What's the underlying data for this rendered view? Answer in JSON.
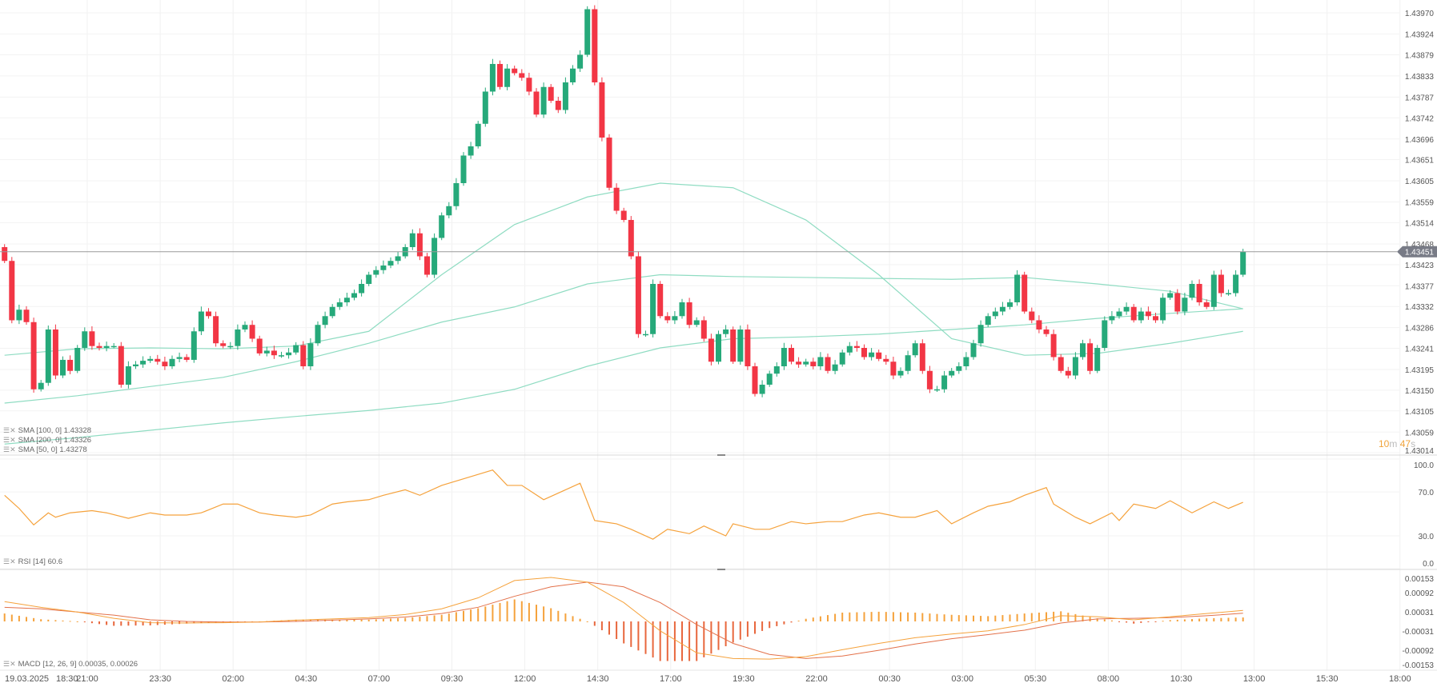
{
  "colors": {
    "up": "#26a97a",
    "down": "#f23645",
    "sma": "#8fdcc2",
    "rsi": "#f5a23c",
    "macd": "#f5a23c",
    "signal": "#e3714a",
    "hist_up": "#f5a23c",
    "hist_down": "#e8673d",
    "last_price": "#787b86"
  },
  "legend": {
    "sma100": "SMA [100, 0] 1.43328",
    "sma200": "SMA [200, 0] 1.43326",
    "sma50": "SMA [50, 0] 1.43278",
    "rsi": "RSI [14] 60.6",
    "macd": "MACD [12, 26, 9] 0.00035, 0.00026",
    "icons": [
      "settings-icon",
      "close-icon"
    ]
  },
  "timer": {
    "minutes": "10",
    "m": "m",
    "seconds": "47",
    "s": "s"
  },
  "chart_data": [
    {
      "type": "candlestick",
      "title": "",
      "first_open": 1.43461,
      "closes": [
        1.43431,
        1.43302,
        1.43325,
        1.43298,
        1.43152,
        1.43166,
        1.43282,
        1.43182,
        1.43216,
        1.43192,
        1.43242,
        1.43278,
        1.43246,
        1.43242,
        1.43246,
        1.43246,
        1.43162,
        1.43202,
        1.43206,
        1.43214,
        1.43218,
        1.43212,
        1.43202,
        1.43218,
        1.43222,
        1.43216,
        1.43278,
        1.43321,
        1.43311,
        1.43252,
        1.43246,
        1.43246,
        1.43282,
        1.43292,
        1.43262,
        1.4323,
        1.43236,
        1.43226,
        1.43226,
        1.43232,
        1.43248,
        1.43202,
        1.43252,
        1.43292,
        1.43311,
        1.43331,
        1.43341,
        1.43351,
        1.43361,
        1.43381,
        1.43401,
        1.43411,
        1.43421,
        1.43431,
        1.43441,
        1.43461,
        1.43491,
        1.43441,
        1.43401,
        1.43481,
        1.4353,
        1.4355,
        1.436,
        1.4366,
        1.4368,
        1.43729,
        1.43799,
        1.43859,
        1.43809,
        1.43849,
        1.43839,
        1.43829,
        1.43799,
        1.43749,
        1.43809,
        1.43779,
        1.43759,
        1.43819,
        1.43849,
        1.43879,
        1.43978,
        1.43819,
        1.43699,
        1.4359,
        1.4354,
        1.4352,
        1.43441,
        1.43272,
        1.43272,
        1.43381,
        1.43311,
        1.43302,
        1.43311,
        1.43341,
        1.43292,
        1.43302,
        1.43262,
        1.43212,
        1.43272,
        1.43282,
        1.43212,
        1.43282,
        1.43202,
        1.43142,
        1.43162,
        1.43186,
        1.43202,
        1.43242,
        1.43212,
        1.43206,
        1.43212,
        1.43202,
        1.43222,
        1.43192,
        1.43206,
        1.43232,
        1.43246,
        1.43242,
        1.43222,
        1.43232,
        1.43218,
        1.43212,
        1.43182,
        1.43192,
        1.43226,
        1.43252,
        1.43192,
        1.43152,
        1.43152,
        1.43182,
        1.43192,
        1.43202,
        1.43222,
        1.43252,
        1.43292,
        1.43311,
        1.43321,
        1.43331,
        1.43341,
        1.43401,
        1.43321,
        1.43302,
        1.43282,
        1.43272,
        1.43222,
        1.43192,
        1.43182,
        1.43222,
        1.43252,
        1.43192,
        1.43242,
        1.43302,
        1.43311,
        1.43321,
        1.43331,
        1.43302,
        1.43321,
        1.43311,
        1.43302,
        1.43351,
        1.43361,
        1.43321,
        1.43351,
        1.43381,
        1.43341,
        1.43331,
        1.43401,
        1.43361,
        1.43361,
        1.43401,
        1.43451
      ],
      "sma_sample_every": 10,
      "series": [
        {
          "name": "SMA [50, 0]",
          "values": [
            1.43226,
            1.4324,
            1.43242,
            1.4324,
            1.43246,
            1.43278,
            1.43401,
            1.4351,
            1.4357,
            1.436,
            1.4359,
            1.4352,
            1.43401,
            1.43262,
            1.43226,
            1.4323,
            1.43252,
            1.43278
          ]
        },
        {
          "name": "SMA [100, 0]",
          "values": [
            1.43122,
            1.43138,
            1.43158,
            1.43178,
            1.43212,
            1.43252,
            1.43298,
            1.43331,
            1.43381,
            1.43401,
            1.43397,
            1.43395,
            1.43393,
            1.43391,
            1.43395,
            1.43381,
            1.43365,
            1.43327
          ]
        },
        {
          "name": "SMA [200, 0]",
          "values": [
            1.43033,
            1.43047,
            1.43063,
            1.43079,
            1.43093,
            1.43106,
            1.43122,
            1.43152,
            1.43202,
            1.43242,
            1.43262,
            1.43266,
            1.43272,
            1.43282,
            1.43292,
            1.43306,
            1.43317,
            1.43327
          ]
        }
      ],
      "last_price": "1.43451",
      "y_ticks": [
        "1.43970",
        "1.43924",
        "1.43879",
        "1.43833",
        "1.43787",
        "1.43742",
        "1.43696",
        "1.43651",
        "1.43605",
        "1.43559",
        "1.43514",
        "1.43468",
        "1.43423",
        "1.43377",
        "1.43332",
        "1.43286",
        "1.43241",
        "1.43195",
        "1.43150",
        "1.43105",
        "1.43059",
        "1.43014"
      ],
      "ylim": [
        1.43014,
        1.4399
      ],
      "grid": true
    },
    {
      "type": "line",
      "name": "RSI [14]",
      "points": [
        [
          0,
          67
        ],
        [
          2,
          55
        ],
        [
          4,
          40
        ],
        [
          6,
          51
        ],
        [
          7,
          47
        ],
        [
          9,
          51
        ],
        [
          12,
          53
        ],
        [
          14,
          51
        ],
        [
          17,
          46
        ],
        [
          20,
          51
        ],
        [
          22,
          49
        ],
        [
          25,
          49
        ],
        [
          27,
          51
        ],
        [
          30,
          59
        ],
        [
          32,
          59
        ],
        [
          35,
          51
        ],
        [
          37,
          49
        ],
        [
          40,
          47
        ],
        [
          42,
          49
        ],
        [
          45,
          59
        ],
        [
          47,
          61
        ],
        [
          50,
          63
        ],
        [
          52,
          67
        ],
        [
          55,
          72
        ],
        [
          57,
          67
        ],
        [
          60,
          76
        ],
        [
          62,
          80
        ],
        [
          65,
          86
        ],
        [
          67,
          90
        ],
        [
          69,
          76
        ],
        [
          71,
          76
        ],
        [
          74,
          63
        ],
        [
          76,
          69
        ],
        [
          79,
          78
        ],
        [
          81,
          44
        ],
        [
          84,
          41
        ],
        [
          86,
          36
        ],
        [
          89,
          27
        ],
        [
          91,
          36
        ],
        [
          94,
          32
        ],
        [
          96,
          39
        ],
        [
          99,
          30
        ],
        [
          100,
          41
        ],
        [
          103,
          36
        ],
        [
          105,
          36
        ],
        [
          108,
          43
        ],
        [
          110,
          41
        ],
        [
          113,
          43
        ],
        [
          115,
          43
        ],
        [
          118,
          49
        ],
        [
          120,
          51
        ],
        [
          123,
          47
        ],
        [
          125,
          47
        ],
        [
          128,
          53
        ],
        [
          130,
          41
        ],
        [
          133,
          51
        ],
        [
          135,
          57
        ],
        [
          138,
          61
        ],
        [
          140,
          67
        ],
        [
          143,
          74
        ],
        [
          144,
          59
        ],
        [
          147,
          47
        ],
        [
          149,
          41
        ],
        [
          152,
          51
        ],
        [
          153,
          44
        ],
        [
          155,
          59
        ],
        [
          158,
          55
        ],
        [
          160,
          62
        ],
        [
          163,
          51
        ],
        [
          166,
          61
        ],
        [
          168,
          55
        ],
        [
          170,
          60.6
        ]
      ],
      "y_ticks": [
        "100.0",
        "70.0",
        "30.0",
        "0.0"
      ],
      "ylim": [
        0,
        100
      ]
    },
    {
      "type": "line+bar",
      "name": "MACD [12, 26, 9]",
      "sample_every": 5,
      "macd": [
        0.00063,
        0.00045,
        0.0003,
        0.0001,
        -4e-05,
        -5e-05,
        -4e-05,
        -2e-05,
        4e-05,
        8e-05,
        0.00012,
        0.00022,
        0.0004,
        0.00075,
        0.0013,
        0.0014,
        0.00125,
        0.0006,
        -0.0003,
        -0.001,
        -0.00118,
        -0.0012,
        -0.00112,
        -0.0009,
        -0.0007,
        -0.00052,
        -0.0004,
        -0.0003,
        -0.0001,
        0.00018,
        0.00015,
        5e-05,
        0.00015,
        0.00025,
        0.00035
      ],
      "signal": [
        0.00045,
        0.0004,
        0.0003,
        0.0002,
        5e-05,
        0.0,
        -2e-05,
        -2e-05,
        0.0,
        4e-05,
        8e-05,
        0.00014,
        0.00025,
        0.00045,
        0.0008,
        0.0011,
        0.00125,
        0.0011,
        0.0006,
        -0.0001,
        -0.0007,
        -0.00105,
        -0.00118,
        -0.0011,
        -0.00092,
        -0.00072,
        -0.00055,
        -0.00042,
        -0.00028,
        -5e-05,
        8e-05,
        0.0001,
        0.00012,
        0.00018,
        0.00026
      ],
      "y_ticks": [
        "0.00153",
        "0.00092",
        "0.00031",
        "-0.00031",
        "-0.00092",
        "-0.00153"
      ],
      "ylim": [
        -0.00153,
        0.00153
      ]
    }
  ],
  "x_axis": {
    "date_label": "19.03.2025",
    "ticks": [
      "18:30",
      "21:00",
      "23:30",
      "02:00",
      "04:30",
      "07:00",
      "09:30",
      "12:00",
      "14:30",
      "17:00",
      "19:30",
      "22:00",
      "00:30",
      "03:00",
      "05:30",
      "08:00",
      "10:30",
      "13:00",
      "15:30",
      "18:00"
    ]
  }
}
